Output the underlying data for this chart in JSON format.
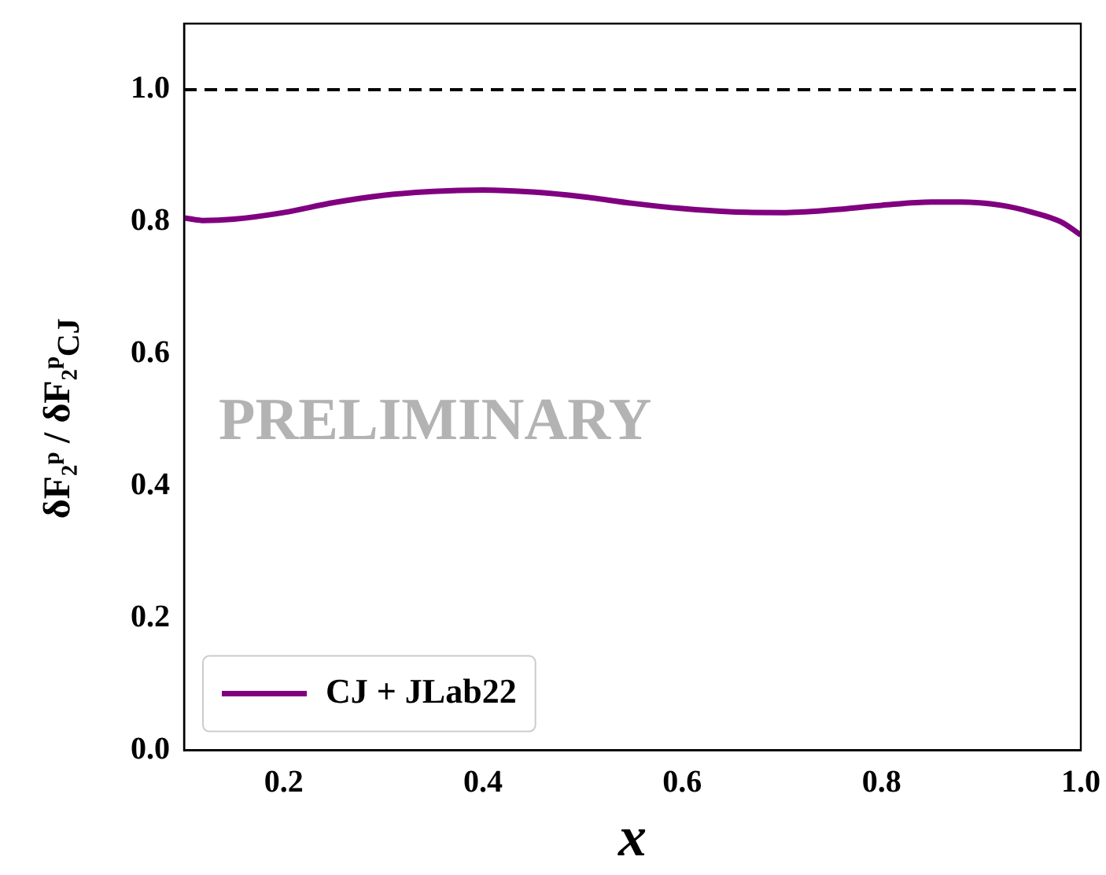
{
  "chart_data": {
    "type": "line",
    "ylabel": "δF₂ᵖ / δF₂ᵖ$_{CJ}$",
    "xlabel": "x",
    "x": [
      0.1,
      0.12,
      0.15,
      0.2,
      0.25,
      0.3,
      0.35,
      0.4,
      0.45,
      0.5,
      0.55,
      0.6,
      0.65,
      0.7,
      0.75,
      0.8,
      0.85,
      0.88,
      0.92,
      0.95,
      0.98,
      1.0
    ],
    "series": [
      {
        "name": "CJ + JLab22",
        "color": "#800080",
        "values": [
          0.806,
          0.802,
          0.804,
          0.814,
          0.829,
          0.84,
          0.846,
          0.848,
          0.845,
          0.838,
          0.828,
          0.82,
          0.815,
          0.814,
          0.818,
          0.825,
          0.83,
          0.83,
          0.825,
          0.815,
          0.8,
          0.78
        ]
      }
    ],
    "xlim": [
      0.1,
      1.0
    ],
    "xticks": [
      0.2,
      0.4,
      0.6,
      0.8,
      {
        "value": 1,
        "label": "1.0"
      }
    ],
    "ylim": [
      0,
      1.1
    ],
    "yticks": [
      {
        "value": 0,
        "label": "0.0"
      },
      0.2,
      0.4,
      0.6,
      0.8,
      {
        "value": 1,
        "label": "1.0"
      }
    ],
    "ref_lines": [
      {
        "axis": "y",
        "value": 1.0,
        "color": "#000000",
        "line_style": "dashed"
      }
    ],
    "annotations": [
      "PRELIMINARY"
    ],
    "legend": "bottom left",
    "grid": false,
    "marker": "none",
    "line_style": "solid"
  }
}
